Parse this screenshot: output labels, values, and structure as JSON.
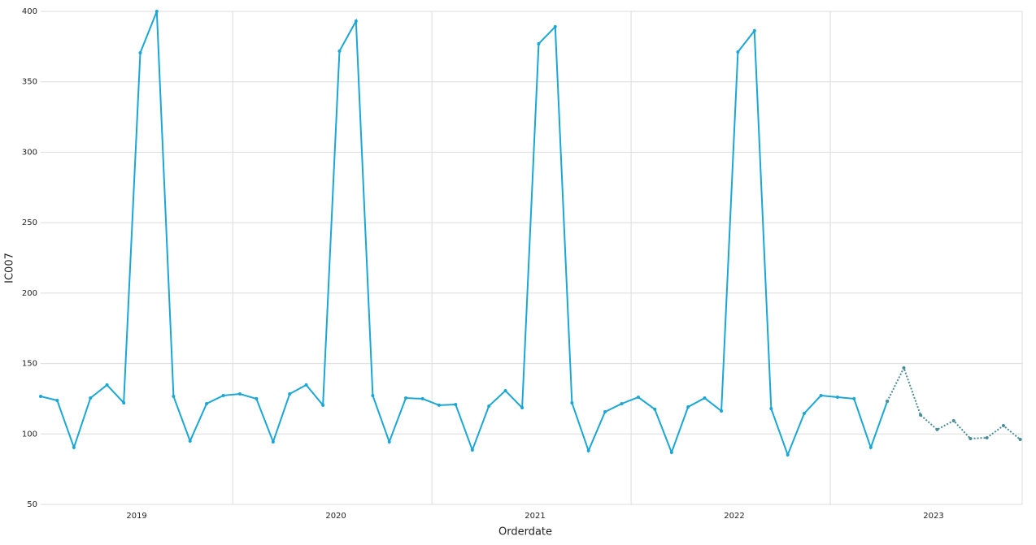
{
  "chart_data": {
    "type": "line",
    "xlabel": "Orderdate",
    "ylabel": "IC007",
    "x": [
      2018.518,
      2018.601,
      2018.685,
      2018.768,
      2018.851,
      2018.935,
      2019.018,
      2019.101,
      2019.185,
      2019.268,
      2019.351,
      2019.435,
      2019.518,
      2019.601,
      2019.685,
      2019.768,
      2019.851,
      2019.935,
      2020.018,
      2020.101,
      2020.185,
      2020.268,
      2020.351,
      2020.435,
      2020.518,
      2020.601,
      2020.685,
      2020.768,
      2020.851,
      2020.935,
      2021.018,
      2021.101,
      2021.185,
      2021.268,
      2021.351,
      2021.435,
      2021.518,
      2021.601,
      2021.685,
      2021.768,
      2021.851,
      2021.935,
      2022.018,
      2022.101,
      2022.185,
      2022.268,
      2022.351,
      2022.435,
      2022.518,
      2022.601,
      2022.685,
      2022.768,
      2022.851,
      2022.935,
      2023.018,
      2023.101,
      2023.185,
      2023.268,
      2023.351,
      2023.435
    ],
    "series": [
      {
        "color": "#1aa7d6",
        "style": "solid",
        "values": [
          126.7,
          123.8,
          90.4,
          125.5,
          134.8,
          122.1,
          370.6,
          400,
          126.7,
          95,
          121.5,
          127.3,
          128.4,
          125,
          94.4,
          128.4,
          134.8,
          120.4,
          371.8,
          393.1,
          127.3,
          94.4,
          125.5,
          125,
          120.4,
          120.9,
          88.6,
          119.8,
          130.7,
          118.6,
          377,
          389.1,
          122.1,
          88.1,
          115.7,
          121.5,
          126.1,
          117.5,
          86.9,
          119.2,
          125.5,
          116.3,
          371.2,
          386.2,
          118,
          85.2,
          114.6,
          127.3,
          126.1,
          125,
          90.4,
          123.2,
          null,
          null,
          null,
          null,
          null,
          null,
          null,
          null
        ]
      },
      {
        "color": "#4a8d96",
        "style": "dotted",
        "values": [
          null,
          null,
          null,
          null,
          null,
          null,
          null,
          null,
          null,
          null,
          null,
          null,
          null,
          null,
          null,
          null,
          null,
          null,
          null,
          null,
          null,
          null,
          null,
          null,
          null,
          null,
          null,
          null,
          null,
          null,
          null,
          null,
          null,
          null,
          null,
          null,
          null,
          null,
          null,
          null,
          null,
          null,
          null,
          null,
          null,
          null,
          null,
          null,
          null,
          null,
          null,
          123.2,
          146.9,
          113.4,
          103.1,
          109.4,
          96.7,
          97.3,
          105.9,
          96.1
        ]
      }
    ],
    "xlim": [
      2018.518,
      2023.445
    ],
    "xticks": [
      2019,
      2020,
      2021,
      2022,
      2023
    ],
    "x_gridlines": [
      2019.482,
      2020.482,
      2021.482,
      2022.482
    ],
    "ylim": [
      50,
      400
    ],
    "yticks": [
      50,
      100,
      150,
      200,
      250,
      300,
      350,
      400
    ],
    "grid": true
  }
}
